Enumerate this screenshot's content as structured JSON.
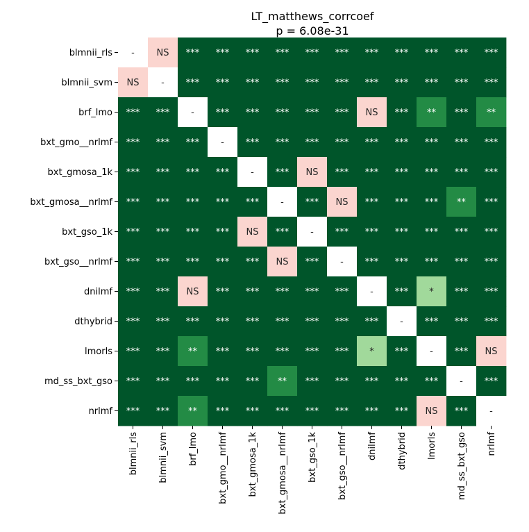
{
  "chart_data": {
    "type": "heatmap",
    "title": "LT_matthews_corrcoef",
    "subtitle": "p = 6.08e-31",
    "xlabel": "",
    "ylabel": "",
    "rows": [
      "blmnii_rls",
      "blmnii_svm",
      "brf_lmo",
      "bxt_gmo__nrlmf",
      "bxt_gmosa_1k",
      "bxt_gmosa__nrlmf",
      "bxt_gso_1k",
      "bxt_gso__nrlmf",
      "dnilmf",
      "dthybrid",
      "lmorls",
      "md_ss_bxt_gso",
      "nrlmf"
    ],
    "columns": [
      "blmnii_rls",
      "blmnii_svm",
      "brf_lmo",
      "bxt_gmo__nrlmf",
      "bxt_gmosa_1k",
      "bxt_gmosa__nrlmf",
      "bxt_gso_1k",
      "bxt_gso__nrlmf",
      "dnilmf",
      "dthybrid",
      "lmorls",
      "md_ss_bxt_gso",
      "nrlmf"
    ],
    "cells": [
      [
        "-",
        "NS",
        "***",
        "***",
        "***",
        "***",
        "***",
        "***",
        "***",
        "***",
        "***",
        "***",
        "***"
      ],
      [
        "NS",
        "-",
        "***",
        "***",
        "***",
        "***",
        "***",
        "***",
        "***",
        "***",
        "***",
        "***",
        "***"
      ],
      [
        "***",
        "***",
        "-",
        "***",
        "***",
        "***",
        "***",
        "***",
        "NS",
        "***",
        "**",
        "***",
        "**"
      ],
      [
        "***",
        "***",
        "***",
        "-",
        "***",
        "***",
        "***",
        "***",
        "***",
        "***",
        "***",
        "***",
        "***"
      ],
      [
        "***",
        "***",
        "***",
        "***",
        "-",
        "***",
        "NS",
        "***",
        "***",
        "***",
        "***",
        "***",
        "***"
      ],
      [
        "***",
        "***",
        "***",
        "***",
        "***",
        "-",
        "***",
        "NS",
        "***",
        "***",
        "***",
        "**",
        "***"
      ],
      [
        "***",
        "***",
        "***",
        "***",
        "NS",
        "***",
        "-",
        "***",
        "***",
        "***",
        "***",
        "***",
        "***"
      ],
      [
        "***",
        "***",
        "***",
        "***",
        "***",
        "NS",
        "***",
        "-",
        "***",
        "***",
        "***",
        "***",
        "***"
      ],
      [
        "***",
        "***",
        "NS",
        "***",
        "***",
        "***",
        "***",
        "***",
        "-",
        "***",
        "*",
        "***",
        "***"
      ],
      [
        "***",
        "***",
        "***",
        "***",
        "***",
        "***",
        "***",
        "***",
        "***",
        "-",
        "***",
        "***",
        "***"
      ],
      [
        "***",
        "***",
        "**",
        "***",
        "***",
        "***",
        "***",
        "***",
        "*",
        "***",
        "-",
        "***",
        "NS"
      ],
      [
        "***",
        "***",
        "***",
        "***",
        "***",
        "**",
        "***",
        "***",
        "***",
        "***",
        "***",
        "-",
        "***"
      ],
      [
        "***",
        "***",
        "**",
        "***",
        "***",
        "***",
        "***",
        "***",
        "***",
        "***",
        "NS",
        "***",
        "-"
      ]
    ],
    "colorbar": false,
    "grid": false,
    "category_colors": {
      "***": "#00552a",
      "**": "#238b45",
      "*": "#a1d99b",
      "NS": "#fbd5cf",
      "-": "#ffffff"
    },
    "text_colors": {
      "***": "#ffffff",
      "**": "#ffffff",
      "*": "#262626",
      "NS": "#262626",
      "-": "#262626"
    }
  }
}
